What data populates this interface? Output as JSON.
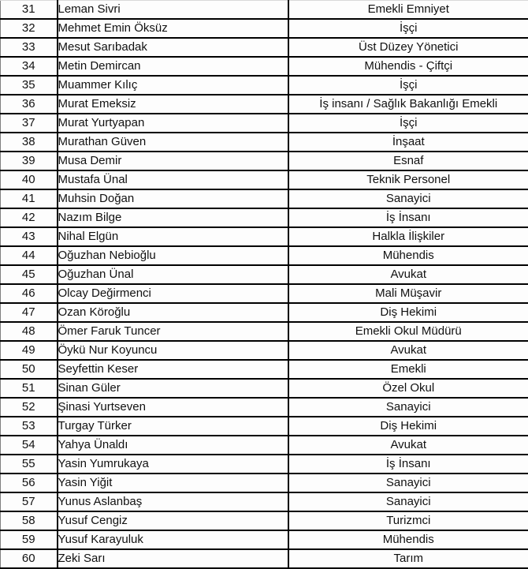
{
  "colors": {
    "grid_border": "#000000",
    "outer_side_border": "#808080",
    "top_border": "#d9d9d9",
    "background": "#fdfdfd",
    "text": "#111111"
  },
  "table": {
    "columns": [
      "row_number",
      "name",
      "occupation"
    ],
    "rows": [
      {
        "num": "31",
        "name": "Leman Sivri",
        "occupation": "Emekli Emniyet"
      },
      {
        "num": "32",
        "name": "Mehmet Emin Öksüz",
        "occupation": "İşçi"
      },
      {
        "num": "33",
        "name": "Mesut Sarıbadak",
        "occupation": "Üst Düzey Yönetici"
      },
      {
        "num": "34",
        "name": "Metin Demircan",
        "occupation": "Mühendis - Çiftçi"
      },
      {
        "num": "35",
        "name": "Muammer Kılıç",
        "occupation": "İşçi"
      },
      {
        "num": "36",
        "name": "Murat Emeksiz",
        "occupation": "İş insanı / Sağlık Bakanlığı Emekli"
      },
      {
        "num": "37",
        "name": "Murat Yurtyapan",
        "occupation": "İşçi"
      },
      {
        "num": "38",
        "name": "Murathan Güven",
        "occupation": "İnşaat"
      },
      {
        "num": "39",
        "name": "Musa Demir",
        "occupation": "Esnaf"
      },
      {
        "num": "40",
        "name": "Mustafa Ünal",
        "occupation": "Teknik Personel"
      },
      {
        "num": "41",
        "name": "Muhsin Doğan",
        "occupation": "Sanayici"
      },
      {
        "num": "42",
        "name": "Nazım Bilge",
        "occupation": "İş İnsanı"
      },
      {
        "num": "43",
        "name": "Nihal Elgün",
        "occupation": "Halkla İlişkiler"
      },
      {
        "num": "44",
        "name": "Oğuzhan Nebioğlu",
        "occupation": "Mühendis"
      },
      {
        "num": "45",
        "name": "Oğuzhan Ünal",
        "occupation": "Avukat"
      },
      {
        "num": "46",
        "name": "Olcay Değirmenci",
        "occupation": "Mali Müşavir"
      },
      {
        "num": "47",
        "name": "Ozan Köroğlu",
        "occupation": "Diş Hekimi"
      },
      {
        "num": "48",
        "name": "Ömer Faruk Tuncer",
        "occupation": "Emekli Okul Müdürü"
      },
      {
        "num": "49",
        "name": "Öykü Nur Koyuncu",
        "occupation": "Avukat"
      },
      {
        "num": "50",
        "name": "Seyfettin Keser",
        "occupation": "Emekli"
      },
      {
        "num": "51",
        "name": "Sinan Güler",
        "occupation": "Özel Okul"
      },
      {
        "num": "52",
        "name": "Şinasi Yurtseven",
        "occupation": "Sanayici"
      },
      {
        "num": "53",
        "name": "Turgay Türker",
        "occupation": "Diş Hekimi"
      },
      {
        "num": "54",
        "name": "Yahya Ünaldı",
        "occupation": "Avukat"
      },
      {
        "num": "55",
        "name": "Yasin Yumrukaya",
        "occupation": "İş İnsanı"
      },
      {
        "num": "56",
        "name": "Yasin Yiğit",
        "occupation": "Sanayici"
      },
      {
        "num": "57",
        "name": "Yunus Aslanbaş",
        "occupation": "Sanayici"
      },
      {
        "num": "58",
        "name": "Yusuf Cengiz",
        "occupation": "Turizmci"
      },
      {
        "num": "59",
        "name": "Yusuf Karayuluk",
        "occupation": "Mühendis"
      },
      {
        "num": "60",
        "name": "Zeki Sarı",
        "occupation": "Tarım"
      }
    ]
  }
}
